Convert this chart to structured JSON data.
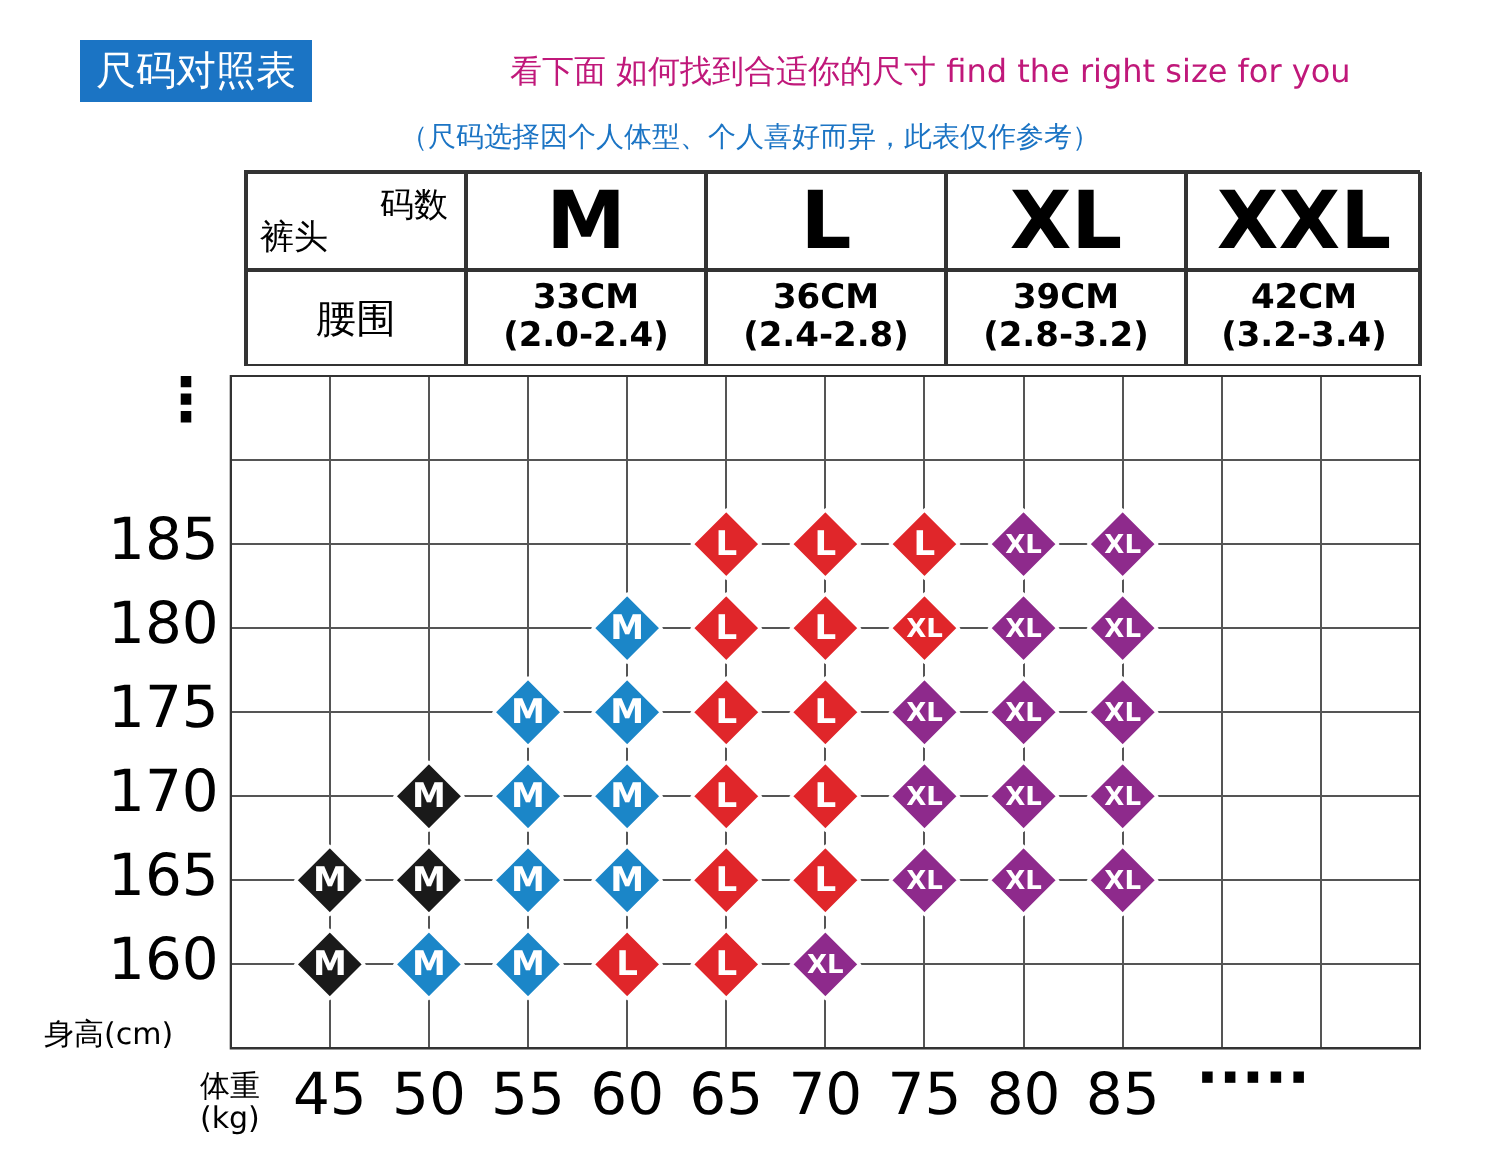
{
  "chart_data": {
    "type": "scatter",
    "title": "尺码对照表",
    "subtitle": "看下面 如何找到合适你的尺寸 find the right size for you",
    "xlabel": "体重(kg)",
    "ylabel": "身高(cm)",
    "annotations": [
      "（尺码选择因个人体型、个人喜好而异，此表仅作参考）",
      "码数",
      "裤头",
      "M",
      "L",
      "XL",
      "XXL",
      "腰围",
      "33CM\n(2.0-2.4)",
      "36CM\n(2.4-2.8)",
      "39CM\n(2.8-3.2)",
      "42CM\n(3.2-3.4)",
      "⋮",
      "·····"
    ],
    "series": [
      {
        "name": "M",
        "color": "#1a1a1a",
        "x": [
          45,
          45,
          50,
          50
        ],
        "values": [
          160,
          165,
          165,
          170
        ]
      },
      {
        "name": "M",
        "color": "#1b86c8",
        "x": [
          50,
          55,
          55,
          55,
          55,
          60,
          60,
          60,
          60
        ],
        "values": [
          160,
          160,
          165,
          170,
          175,
          165,
          170,
          175,
          180
        ]
      },
      {
        "name": "L",
        "color": "#e0262a",
        "x": [
          60,
          65,
          65,
          65,
          65,
          65,
          65,
          70,
          70,
          70,
          70,
          70,
          75
        ],
        "values": [
          160,
          160,
          165,
          170,
          175,
          180,
          185,
          165,
          170,
          175,
          180,
          185,
          185
        ]
      },
      {
        "name": "XL",
        "color": "#e0262a",
        "x": [
          75
        ],
        "values": [
          180
        ]
      },
      {
        "name": "XL",
        "color": "#8e2a8c",
        "x": [
          70,
          75,
          75,
          75,
          80,
          80,
          80,
          80,
          80,
          85,
          85,
          85,
          85,
          85
        ],
        "values": [
          160,
          165,
          170,
          175,
          165,
          170,
          175,
          180,
          185,
          165,
          170,
          175,
          180,
          185
        ]
      }
    ],
    "xlim": [
      40,
      100
    ],
    "xticks": [
      45,
      50,
      55,
      60,
      65,
      70,
      75,
      80,
      85,
      {
        "value": 90,
        "label": null
      },
      {
        "value": 95,
        "label": null
      }
    ],
    "ylim": [
      155,
      195
    ],
    "yticks": [
      160,
      165,
      170,
      175,
      180,
      185,
      {
        "value": 190,
        "label": null
      }
    ],
    "grid": true,
    "legend": false,
    "marker": "diamond"
  }
}
